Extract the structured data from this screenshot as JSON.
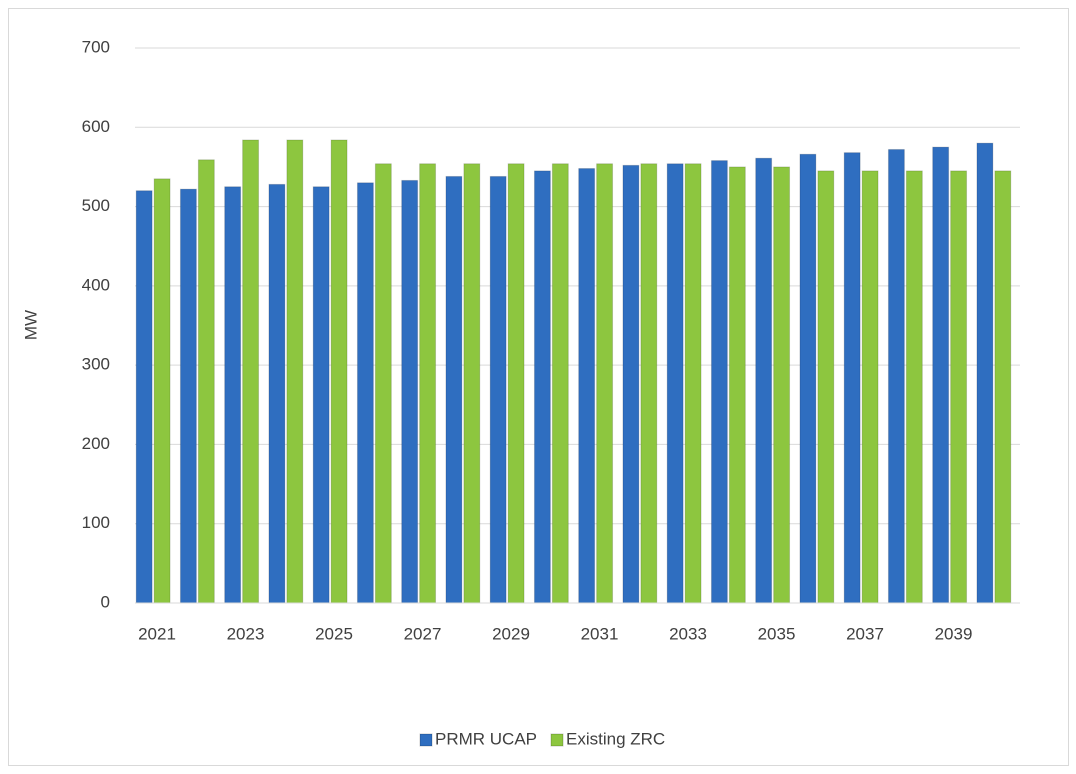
{
  "chart_data": {
    "type": "bar",
    "y_label": "MW",
    "categories": [
      "2021",
      null,
      "2023",
      null,
      "2025",
      null,
      "2027",
      null,
      "2029",
      null,
      "2031",
      null,
      "2033",
      null,
      "2035",
      null,
      "2037",
      null,
      "2039",
      null
    ],
    "series": [
      {
        "name": "PRMR UCAP",
        "color": "#2f6ec0",
        "values": [
          520,
          522,
          525,
          528,
          525,
          530,
          533,
          538,
          538,
          545,
          548,
          552,
          554,
          558,
          561,
          566,
          568,
          572,
          575,
          580
        ]
      },
      {
        "name": "Existing ZRC",
        "color": "#8dc63f",
        "values": [
          535,
          559,
          584,
          584,
          584,
          554,
          554,
          554,
          554,
          554,
          554,
          554,
          554,
          550,
          550,
          545,
          545,
          545,
          545,
          545
        ]
      }
    ],
    "ylim": [
      0,
      700
    ],
    "yticks": [
      0,
      100,
      200,
      300,
      400,
      500,
      600,
      700
    ],
    "grid": true,
    "legend": "bottom"
  }
}
